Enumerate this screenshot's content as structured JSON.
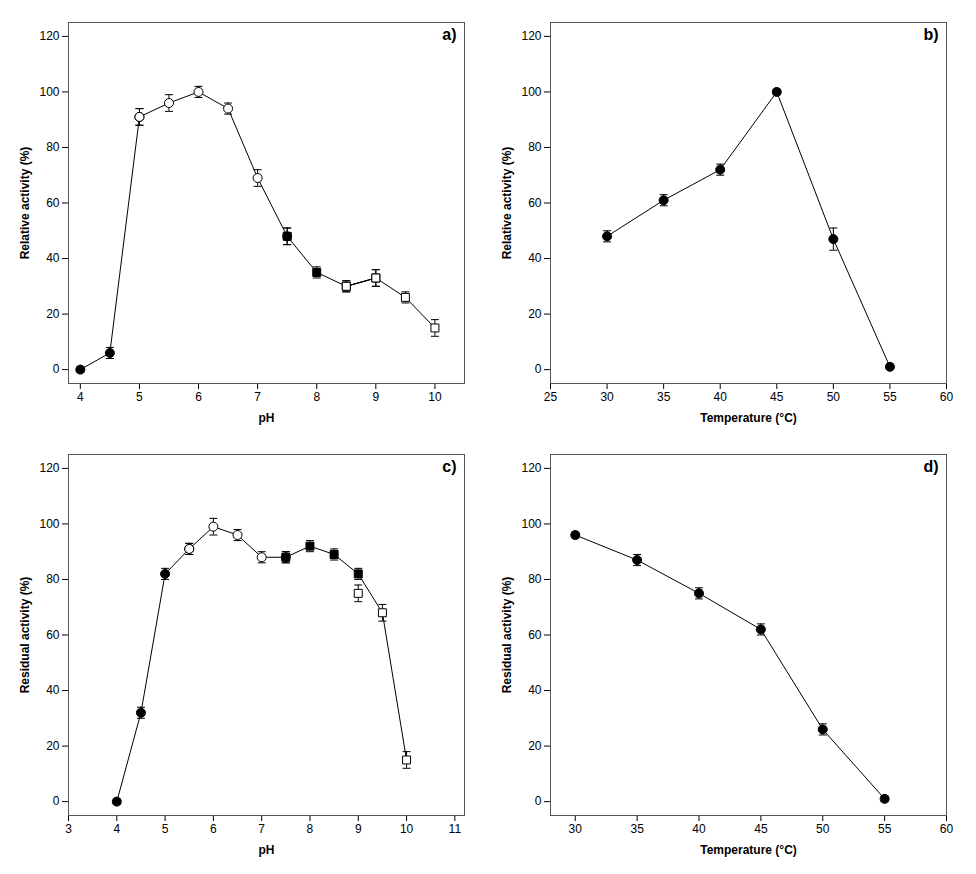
{
  "chart_data": [
    {
      "type": "line",
      "annotation": "a)",
      "xlabel": "pH",
      "ylabel": "Relative activity (%)",
      "xlim": [
        3.8,
        10.5
      ],
      "ylim": [
        -5,
        125
      ],
      "xticks": [
        4,
        5,
        6,
        7,
        8,
        9,
        10
      ],
      "yticks": [
        0,
        20,
        40,
        60,
        80,
        100,
        120
      ],
      "color": "black",
      "series": [
        {
          "type": "line",
          "color": "black",
          "x": [
            4.0,
            4.5,
            5.0,
            5.5,
            6.0,
            6.5,
            7.0,
            7.5,
            8.0,
            8.5,
            9.0,
            8.5,
            9.0,
            9.5,
            10.0
          ],
          "values": [
            0,
            6,
            91,
            96,
            100,
            94,
            69,
            48,
            35,
            30,
            33,
            30,
            33,
            26,
            15
          ]
        },
        {
          "type": "scatter",
          "marker": "circle",
          "color": "black",
          "x": [
            4.0,
            4.5,
            5.0
          ],
          "values": [
            0,
            6,
            91
          ],
          "yerr": [
            1,
            2,
            3
          ]
        },
        {
          "type": "scatter",
          "marker": "circle",
          "color": "white",
          "x": [
            5.0,
            5.5,
            6.0,
            6.5,
            7.0,
            7.5
          ],
          "values": [
            91,
            96,
            100,
            94,
            69,
            48
          ],
          "yerr": [
            3,
            3,
            2,
            2,
            3,
            3
          ]
        },
        {
          "type": "scatter",
          "marker": "square",
          "color": "black",
          "x": [
            7.5,
            8.0,
            8.5,
            9.0
          ],
          "values": [
            48,
            35,
            30,
            33
          ],
          "yerr": [
            3,
            2,
            2,
            3
          ]
        },
        {
          "type": "scatter",
          "marker": "square",
          "color": "white",
          "x": [
            8.5,
            9.0,
            9.5,
            10.0
          ],
          "values": [
            30,
            33,
            26,
            15
          ],
          "yerr": [
            2,
            3,
            2,
            3
          ]
        }
      ]
    },
    {
      "type": "line",
      "annotation": "b)",
      "xlabel": "Temperature (°C)",
      "ylabel": "Relative activity (%)",
      "xlim": [
        25,
        60
      ],
      "ylim": [
        -5,
        125
      ],
      "xticks": [
        25,
        30,
        35,
        40,
        45,
        50,
        55,
        60
      ],
      "yticks": [
        0,
        20,
        40,
        60,
        80,
        100,
        120
      ],
      "color": "black",
      "series": [
        {
          "type": "line",
          "color": "black",
          "x": [
            30,
            35,
            40,
            45,
            50,
            55
          ],
          "values": [
            48,
            61,
            72,
            100,
            47,
            1
          ]
        },
        {
          "type": "scatter",
          "marker": "circle",
          "color": "black",
          "x": [
            30,
            35,
            40,
            45,
            50,
            55
          ],
          "values": [
            48,
            61,
            72,
            100,
            47,
            1
          ],
          "yerr": [
            2,
            2,
            2,
            1,
            4,
            1
          ]
        }
      ]
    },
    {
      "type": "line",
      "annotation": "c)",
      "xlabel": "pH",
      "ylabel": "Residual activity (%)",
      "xlim": [
        3,
        11.2
      ],
      "ylim": [
        -5,
        125
      ],
      "xticks": [
        3,
        4,
        5,
        6,
        7,
        8,
        9,
        10,
        11
      ],
      "yticks": [
        0,
        20,
        40,
        60,
        80,
        100,
        120
      ],
      "color": "black",
      "series": [
        {
          "type": "line",
          "color": "black",
          "x": [
            4.0,
            4.5,
            5.0,
            5.5,
            6.0,
            6.5,
            7.0,
            7.5,
            8.0,
            8.5,
            9.0,
            9.5,
            10.0
          ],
          "values": [
            0,
            32,
            82,
            91,
            99,
            96,
            88,
            88,
            92,
            89,
            82,
            68,
            15
          ]
        },
        {
          "type": "scatter",
          "marker": "circle",
          "color": "black",
          "x": [
            4.0,
            4.5,
            5.0,
            5.5
          ],
          "values": [
            0,
            32,
            82,
            91
          ],
          "yerr": [
            1,
            2,
            2,
            2
          ]
        },
        {
          "type": "scatter",
          "marker": "circle",
          "color": "white",
          "x": [
            5.5,
            6.0,
            6.5,
            7.0,
            7.5
          ],
          "values": [
            91,
            99,
            96,
            88,
            88
          ],
          "yerr": [
            2,
            3,
            2,
            2,
            2
          ]
        },
        {
          "type": "scatter",
          "marker": "square",
          "color": "black",
          "x": [
            7.5,
            8.0,
            8.5,
            9.0
          ],
          "values": [
            88,
            92,
            89,
            82
          ],
          "yerr": [
            2,
            2,
            2,
            2
          ]
        },
        {
          "type": "scatter",
          "marker": "square",
          "color": "white",
          "x": [
            9.0,
            9.5,
            10.0
          ],
          "values": [
            75,
            68,
            15
          ],
          "yerr": [
            3,
            3,
            3
          ]
        }
      ]
    },
    {
      "type": "line",
      "annotation": "d)",
      "xlabel": "Temperature (°C)",
      "ylabel": "Residual activity (%)",
      "xlim": [
        28,
        60
      ],
      "ylim": [
        -5,
        125
      ],
      "xticks": [
        30,
        35,
        40,
        45,
        50,
        55,
        60
      ],
      "yticks": [
        0,
        20,
        40,
        60,
        80,
        100,
        120
      ],
      "color": "black",
      "series": [
        {
          "type": "line",
          "color": "black",
          "x": [
            30,
            35,
            40,
            45,
            50,
            55
          ],
          "values": [
            96,
            87,
            75,
            62,
            26,
            1
          ]
        },
        {
          "type": "scatter",
          "marker": "circle",
          "color": "black",
          "x": [
            30,
            35,
            40,
            45,
            50,
            55
          ],
          "values": [
            96,
            87,
            75,
            62,
            26,
            1
          ],
          "yerr": [
            1,
            2,
            2,
            2,
            2,
            1
          ]
        }
      ]
    }
  ]
}
